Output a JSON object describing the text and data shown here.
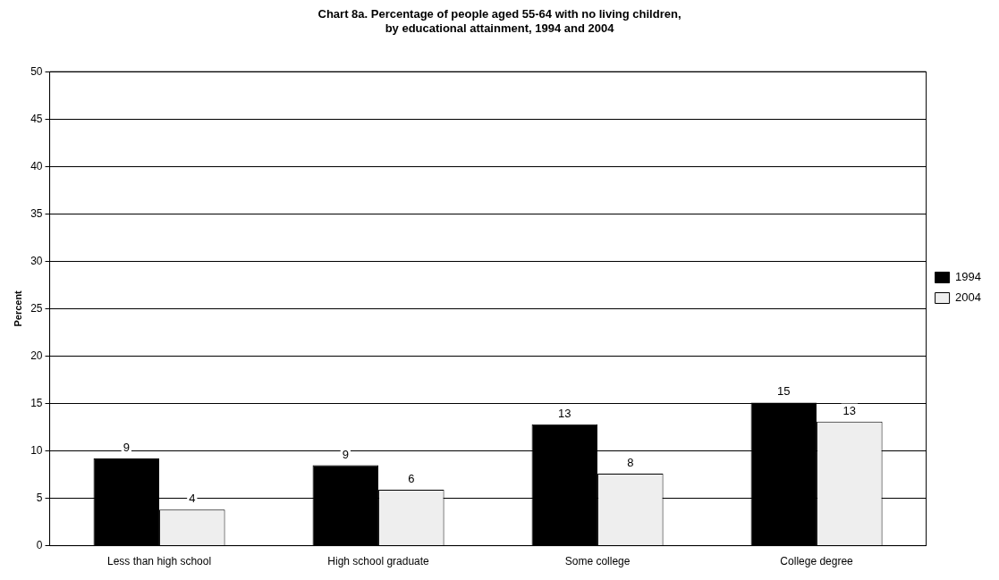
{
  "chart_data": {
    "type": "bar",
    "title": "Chart 8a. Percentage of people aged 55-64 with no living children,\nby educational attainment, 1994 and 2004",
    "ylabel": "Percent",
    "categories": [
      "Less than high school",
      "High school graduate",
      "Some college",
      "College degree"
    ],
    "series": [
      {
        "name": "1994",
        "color": "#000000",
        "values": [
          9.2,
          8.5,
          12.8,
          15.1
        ],
        "value_labels": [
          "9",
          "9",
          "13",
          "15"
        ]
      },
      {
        "name": "2004",
        "color": "#eeeeee",
        "values": [
          3.8,
          5.9,
          7.6,
          13.1
        ],
        "value_labels": [
          "4",
          "6",
          "8",
          "13"
        ]
      }
    ],
    "ylim": [
      0,
      50
    ],
    "yticks": [
      0,
      5,
      10,
      15,
      20,
      25,
      30,
      35,
      40,
      45,
      50
    ],
    "grid": "y",
    "legend": "right"
  }
}
